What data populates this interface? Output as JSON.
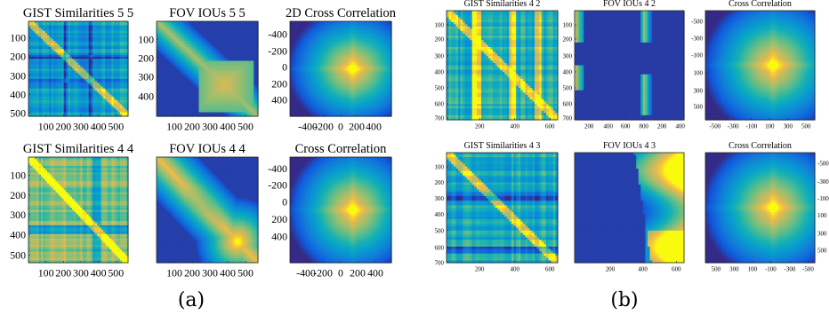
{
  "figure": {
    "captions": {
      "a": "(a)",
      "b": "(b)"
    }
  },
  "chart_data": [
    {
      "group": "a",
      "type": "heatmap",
      "pattern": "gist",
      "title": "GIST Similarities 5 5",
      "xticks": [
        "100",
        "200",
        "300",
        "400",
        "500"
      ],
      "yticks": [
        "100",
        "200",
        "300",
        "400",
        "500"
      ],
      "xlim": [
        0,
        520
      ],
      "ylim": [
        0,
        520
      ]
    },
    {
      "group": "a",
      "type": "heatmap",
      "pattern": "fov55",
      "title": "FOV IOUs 5 5",
      "xticks": [
        "100",
        "200",
        "300",
        "400",
        "500"
      ],
      "yticks": [
        "100",
        "200",
        "300",
        "400"
      ],
      "xlim": [
        0,
        520
      ],
      "ylim": [
        0,
        520
      ]
    },
    {
      "group": "a",
      "type": "heatmap",
      "pattern": "xcorr",
      "title": "2D Cross Correlation",
      "xticks": [
        "-400",
        "-200",
        "0",
        "200",
        "400"
      ],
      "yticks": [
        "-400",
        "-200",
        "0",
        "200",
        "400"
      ],
      "xlim": [
        -500,
        500
      ],
      "ylim": [
        -500,
        500
      ]
    },
    {
      "group": "a",
      "type": "heatmap",
      "pattern": "gist",
      "title": "GIST Similarities 4 4",
      "xticks": [
        "100",
        "200",
        "300",
        "400",
        "500"
      ],
      "yticks": [
        "100",
        "200",
        "300",
        "400",
        "500"
      ],
      "xlim": [
        0,
        520
      ],
      "ylim": [
        0,
        520
      ]
    },
    {
      "group": "a",
      "type": "heatmap",
      "pattern": "fov44",
      "title": "FOV IOUs 4 4",
      "xticks": [
        "100",
        "200",
        "300",
        "400",
        "500"
      ],
      "yticks": [],
      "xlim": [
        0,
        520
      ],
      "ylim": [
        0,
        520
      ]
    },
    {
      "group": "a",
      "type": "heatmap",
      "pattern": "xcorr",
      "title": "Cross Correlation",
      "xticks": [
        "-400",
        "-200",
        "0",
        "200",
        "400"
      ],
      "yticks": [
        "-400",
        "-200",
        "0",
        "200",
        "400"
      ],
      "xlim": [
        -500,
        500
      ],
      "ylim": [
        -500,
        500
      ]
    },
    {
      "group": "b",
      "type": "heatmap",
      "pattern": "gist",
      "title": "GIST Similarities 4 2",
      "xticks": [
        "200",
        "400",
        "600"
      ],
      "yticks": [
        "100",
        "200",
        "300",
        "400",
        "500",
        "600",
        "700"
      ],
      "xlim": [
        0,
        700
      ],
      "ylim": [
        0,
        700
      ]
    },
    {
      "group": "b",
      "type": "heatmap",
      "pattern": "fov42",
      "title": "FOV IOUs 4 2",
      "xticks": [
        "200",
        "400",
        "600",
        "800",
        "200",
        "400"
      ],
      "yticks": [
        "100",
        "200",
        "300",
        "400",
        "500",
        "600",
        "700"
      ],
      "xlim": [
        0,
        700
      ],
      "ylim": [
        0,
        700
      ]
    },
    {
      "group": "b",
      "type": "heatmap",
      "pattern": "xcorr",
      "title": "Cross Correlation",
      "xticks": [
        "-500",
        "-300",
        "-100",
        "100",
        "300",
        "500"
      ],
      "yticks": [
        "-500",
        "-300",
        "-100",
        "100",
        "300",
        "500"
      ],
      "xlim": [
        -600,
        600
      ],
      "ylim": [
        -600,
        600
      ]
    },
    {
      "group": "b",
      "type": "heatmap",
      "pattern": "gist",
      "title": "GIST Similarities 4 3",
      "xticks": [
        "200",
        "400",
        "600"
      ],
      "yticks": [
        "100",
        "200",
        "300",
        "400",
        "500",
        "600",
        "700"
      ],
      "xlim": [
        0,
        700
      ],
      "ylim": [
        0,
        700
      ]
    },
    {
      "group": "b",
      "type": "heatmap",
      "pattern": "fov43",
      "title": "FOV IOUs 4 3",
      "xticks": [
        "200",
        "400",
        "600"
      ],
      "yticks": [],
      "xlim": [
        0,
        700
      ],
      "ylim": [
        0,
        700
      ]
    },
    {
      "group": "b",
      "type": "heatmap",
      "pattern": "xcorr",
      "title": "Cross Correlation",
      "xticks": [
        "500",
        "300",
        "100",
        "-100",
        "-300",
        "-500"
      ],
      "yticks": [
        "-500",
        "-300",
        "-100",
        "100",
        "300",
        "500"
      ],
      "xlim": [
        600,
        -600
      ],
      "ylim": [
        -600,
        600
      ]
    }
  ]
}
